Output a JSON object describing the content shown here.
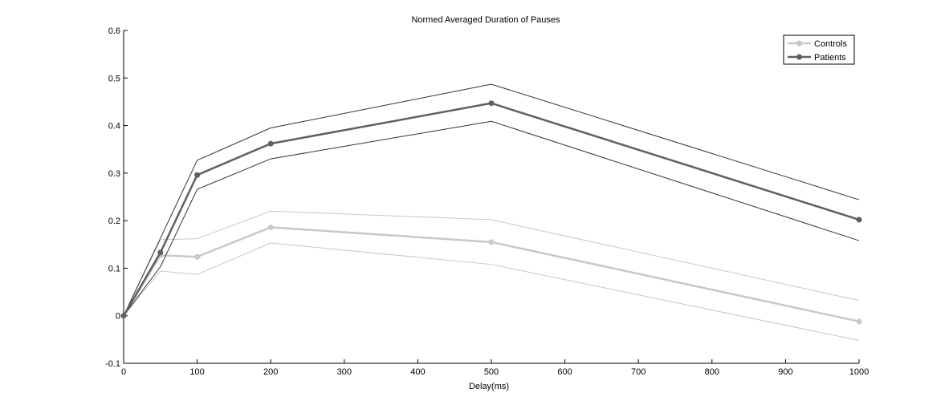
{
  "chart_data": {
    "type": "line",
    "title": "Normed Averaged Duration of Pauses",
    "xlabel": "Delay(ms)",
    "ylabel": "",
    "xlim": [
      0,
      1000
    ],
    "ylim": [
      -0.1,
      0.6
    ],
    "xticks": [
      0,
      100,
      200,
      300,
      400,
      500,
      600,
      700,
      800,
      900,
      1000
    ],
    "xtick_labels": [
      "0",
      "100",
      "200",
      "300",
      "400",
      "500",
      "600",
      "700",
      "800",
      "900",
      "1000"
    ],
    "yticks": [
      -0.1,
      0,
      0.1,
      0.2,
      0.3,
      0.4,
      0.5,
      0.6
    ],
    "ytick_labels": [
      "-0.1",
      "0",
      "0.1",
      "0.2",
      "0.3",
      "0.4",
      "0.5",
      "0.6"
    ],
    "grid": false,
    "legend_position": "top-right",
    "x": [
      0,
      50,
      100,
      200,
      500,
      1000
    ],
    "series": [
      {
        "name": "Controls",
        "color": "#c8c8c8",
        "values": [
          0,
          0.127,
          0.124,
          0.186,
          0.155,
          -0.012
        ],
        "upper": [
          0,
          0.16,
          0.162,
          0.22,
          0.202,
          0.032
        ],
        "lower": [
          0,
          0.094,
          0.087,
          0.153,
          0.108,
          -0.052
        ]
      },
      {
        "name": "Patients",
        "color": "#606060",
        "values": [
          0,
          0.133,
          0.296,
          0.362,
          0.447,
          0.202
        ],
        "upper": [
          0,
          0.163,
          0.327,
          0.395,
          0.487,
          0.244
        ],
        "lower": [
          0,
          0.103,
          0.266,
          0.33,
          0.409,
          0.158
        ]
      }
    ]
  }
}
